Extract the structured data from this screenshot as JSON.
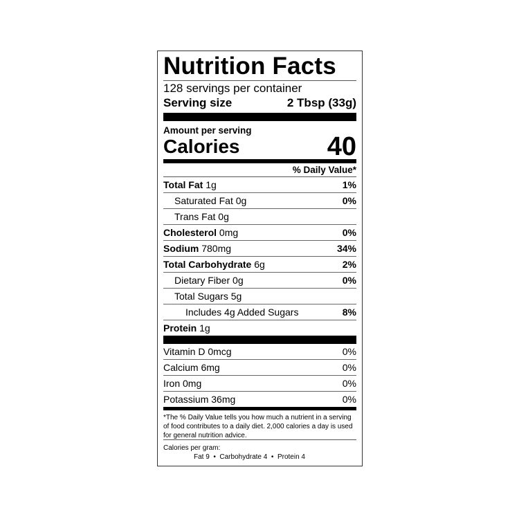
{
  "label": {
    "title": "Nutrition Facts",
    "servings_per_container": "128 servings per container",
    "serving_size_label": "Serving size",
    "serving_size_value": "2 Tbsp (33g)",
    "amount_per_serving": "Amount per serving",
    "calories_label": "Calories",
    "calories_value": "40",
    "daily_value_header": "% Daily Value*",
    "nutrients": [
      {
        "name": "Total Fat",
        "amount": "1g",
        "dv": "1%",
        "bold": true,
        "indent": 0
      },
      {
        "name": "Saturated Fat",
        "amount": "0g",
        "dv": "0%",
        "bold": false,
        "indent": 1
      },
      {
        "name": "Trans Fat",
        "amount": "0g",
        "dv": "",
        "bold": false,
        "indent": 1
      },
      {
        "name": "Cholesterol",
        "amount": "0mg",
        "dv": "0%",
        "bold": true,
        "indent": 0
      },
      {
        "name": "Sodium",
        "amount": "780mg",
        "dv": "34%",
        "bold": true,
        "indent": 0
      },
      {
        "name": "Total Carbohydrate",
        "amount": "6g",
        "dv": "2%",
        "bold": true,
        "indent": 0
      },
      {
        "name": "Dietary Fiber",
        "amount": "0g",
        "dv": "0%",
        "bold": false,
        "indent": 1
      },
      {
        "name": "Total Sugars",
        "amount": "5g",
        "dv": "",
        "bold": false,
        "indent": 1
      },
      {
        "name": "Includes 4g Added Sugars",
        "amount": "",
        "dv": "8%",
        "bold": false,
        "indent": 2
      },
      {
        "name": "Protein",
        "amount": "1g",
        "dv": "",
        "bold": true,
        "indent": 0
      }
    ],
    "vitamins": [
      {
        "name": "Vitamin D 0mcg",
        "dv": "0%"
      },
      {
        "name": "Calcium 6mg",
        "dv": "0%"
      },
      {
        "name": "Iron 0mg",
        "dv": "0%"
      },
      {
        "name": "Potassium 36mg",
        "dv": "0%"
      }
    ],
    "footnote": "*The % Daily Value tells you how much a nutrient in a serving of food contributes to a daily diet. 2,000 calories a day is used for general nutrition advice.",
    "calories_per_gram_label": "Calories per gram:",
    "calories_per_gram_values": "Fat 9  •  Carbohydrate 4  •  Protein 4"
  }
}
